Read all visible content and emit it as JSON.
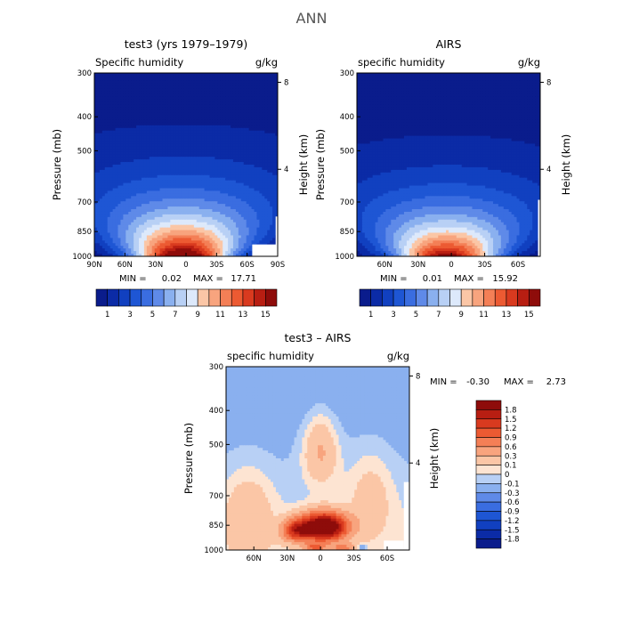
{
  "figure": {
    "title": "ANN"
  },
  "panels": [
    {
      "title": "test3 (yrs 1979–1979)",
      "left_label": "Specific humidity",
      "right_label": "g/kg",
      "ylabel": "Pressure (mb)",
      "y2label": "Height (km)",
      "min_text": "MIN =",
      "min_value": "0.02",
      "max_text": "MAX =",
      "max_value": "17.71"
    },
    {
      "title": "AIRS",
      "left_label": "specific humidity",
      "right_label": "g/kg",
      "ylabel": "Pressure (mb)",
      "y2label": "Height (km)",
      "min_text": "MIN =",
      "min_value": "0.01",
      "max_text": "MAX =",
      "max_value": "15.92"
    },
    {
      "title": "test3 – AIRS",
      "left_label": "specific humidity",
      "right_label": "g/kg",
      "ylabel": "Pressure (mb)",
      "y2label": "Height (km)",
      "min_text": "MIN =",
      "min_value": "-0.30",
      "max_text": "MAX =",
      "max_value": "2.73"
    }
  ],
  "colors": {
    "blues": [
      "#0a1c8c",
      "#0b2ba6",
      "#1140c0",
      "#1e56d4",
      "#3a6de0",
      "#5f8ae8",
      "#8ab0ef",
      "#b8d0f5",
      "#dde9fb"
    ],
    "reds": [
      "#fde4d2",
      "#fbc6a6",
      "#f8a47e",
      "#f47f56",
      "#ec5a32",
      "#d93a1f",
      "#b81e12",
      "#8e0c0a"
    ],
    "missing": "#ffffff"
  },
  "chart_data": [
    {
      "type": "heatmap",
      "variable": "Specific humidity",
      "units": "g/kg",
      "x_ticks": [
        "90N",
        "60N",
        "30N",
        "0",
        "30S",
        "60S",
        "90S"
      ],
      "x_tick_values": [
        90,
        60,
        30,
        0,
        -30,
        -60,
        -90
      ],
      "xlim": [
        90,
        -90
      ],
      "y_ticks": [
        "300",
        "400",
        "500",
        "700",
        "850",
        "1000"
      ],
      "y_tick_values": [
        300,
        400,
        500,
        700,
        850,
        1000
      ],
      "ylim": [
        300,
        1000
      ],
      "y_scale": "log",
      "y2_ticks": [
        "4",
        "8"
      ],
      "y2_tick_values": [
        4,
        8
      ],
      "contour_levels": [
        1,
        2,
        3,
        4,
        5,
        6,
        7,
        8,
        9,
        10,
        11,
        12,
        13,
        14,
        15
      ],
      "colorbar_labels": [
        "1",
        "3",
        "5",
        "7",
        "9",
        "11",
        "13",
        "15"
      ],
      "min": 0.02,
      "max": 17.71,
      "field": {
        "peak_lat": 3,
        "peak": 17.71,
        "surface_width_deg": 46,
        "scale_height_km": 2.1,
        "asymmetry": 0.0
      }
    },
    {
      "type": "heatmap",
      "variable": "specific humidity",
      "units": "g/kg",
      "x_ticks": [
        "60N",
        "30N",
        "0",
        "30S",
        "60S"
      ],
      "x_tick_values": [
        60,
        30,
        0,
        -30,
        -60
      ],
      "xlim": [
        85,
        -80
      ],
      "y_ticks": [
        "300",
        "400",
        "500",
        "700",
        "850",
        "1000"
      ],
      "y_tick_values": [
        300,
        400,
        500,
        700,
        850,
        1000
      ],
      "ylim": [
        300,
        1000
      ],
      "y_scale": "log",
      "y2_ticks": [
        "4",
        "8"
      ],
      "y2_tick_values": [
        4,
        8
      ],
      "contour_levels": [
        1,
        2,
        3,
        4,
        5,
        6,
        7,
        8,
        9,
        10,
        11,
        12,
        13,
        14,
        15
      ],
      "colorbar_labels": [
        "1",
        "3",
        "5",
        "7",
        "9",
        "11",
        "13",
        "15"
      ],
      "min": 0.01,
      "max": 15.92,
      "field": {
        "peak_lat": 4,
        "peak": 15.92,
        "surface_width_deg": 44,
        "scale_height_km": 2.0,
        "asymmetry": 0.0
      }
    },
    {
      "type": "heatmap",
      "variable": "specific humidity",
      "units": "g/kg",
      "x_ticks": [
        "60N",
        "30N",
        "0",
        "30S",
        "60S"
      ],
      "x_tick_values": [
        60,
        30,
        0,
        -30,
        -60
      ],
      "xlim": [
        85,
        -80
      ],
      "y_ticks": [
        "300",
        "400",
        "500",
        "700",
        "850",
        "1000"
      ],
      "y_tick_values": [
        300,
        400,
        500,
        700,
        850,
        1000
      ],
      "ylim": [
        300,
        1000
      ],
      "y_scale": "log",
      "y2_ticks": [
        "4",
        "8"
      ],
      "y2_tick_values": [
        4,
        8
      ],
      "contour_levels": [
        -1.8,
        -1.5,
        -1.2,
        -0.9,
        -0.6,
        -0.3,
        -0.1,
        0,
        0.1,
        0.3,
        0.6,
        0.9,
        1.2,
        1.5,
        1.8
      ],
      "colorbar_labels": [
        "1.8",
        "1.5",
        "1.2",
        "0.9",
        "0.6",
        "0.3",
        "0.1",
        "0",
        "-0.1",
        "-0.3",
        "-0.6",
        "-0.9",
        "-1.2",
        "-1.5",
        "-1.8"
      ],
      "min": -0.3,
      "max": 2.73,
      "field": {
        "max_lat": -3,
        "max_pressure": 860,
        "max": 2.73
      }
    }
  ]
}
